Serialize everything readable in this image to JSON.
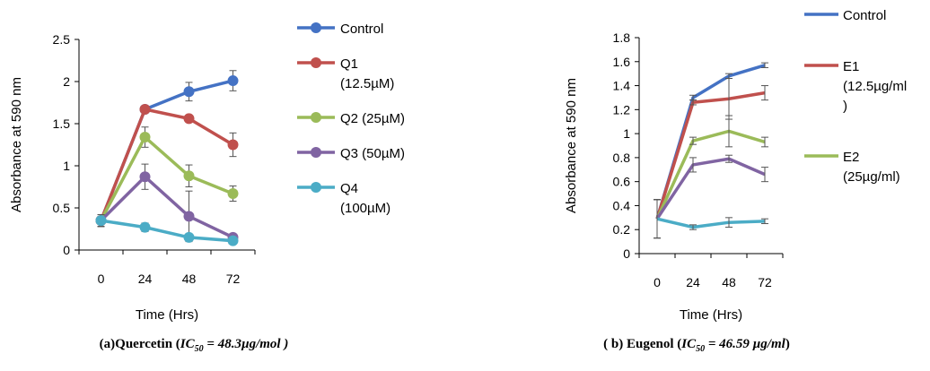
{
  "chart_data": [
    {
      "type": "line",
      "categories": [
        "0",
        "24",
        "48",
        "72"
      ],
      "xlabel": "Time (Hrs)",
      "ylabel": "Absorbance at 590 nm",
      "ylim": [
        0,
        2.5
      ],
      "yticks": [
        "0",
        "0.5",
        "1",
        "1.5",
        "2",
        "2.5"
      ],
      "markers": true,
      "legend_position": "right",
      "caption": {
        "prefix": "(a)Quercetin (",
        "ic": "IC",
        "sub": "50",
        "value": " = 48.3µg/mol )",
        "suffix": ""
      },
      "series": [
        {
          "name": "Control",
          "legend_lines": [
            "Control"
          ],
          "color": "#4472C4",
          "values": [
            0.35,
            1.67,
            1.88,
            2.01
          ],
          "errors": [
            0.07,
            0.03,
            0.11,
            0.12
          ]
        },
        {
          "name": "Q1 (12.5µM)",
          "legend_lines": [
            "Q1",
            "(12.5µM)"
          ],
          "color": "#C0504D",
          "values": [
            0.35,
            1.67,
            1.56,
            1.25
          ],
          "errors": [
            0.07,
            0.03,
            0.03,
            0.14
          ]
        },
        {
          "name": "Q2 (25µM)",
          "legend_lines": [
            "Q2 (25µM)"
          ],
          "color": "#9BBB59",
          "values": [
            0.35,
            1.34,
            0.88,
            0.67
          ],
          "errors": [
            0.07,
            0.12,
            0.13,
            0.09
          ]
        },
        {
          "name": "Q3 (50µM)",
          "legend_lines": [
            "Q3 (50µM)"
          ],
          "color": "#8064A2",
          "values": [
            0.35,
            0.87,
            0.4,
            0.15
          ],
          "errors": [
            0.07,
            0.15,
            0.3,
            0.03
          ]
        },
        {
          "name": "Q4 (100µM)",
          "legend_lines": [
            "Q4",
            "(100µM)"
          ],
          "color": "#4BACC6",
          "values": [
            0.35,
            0.27,
            0.15,
            0.11
          ],
          "errors": [
            0.07,
            0.05,
            0.02,
            0.02
          ]
        }
      ]
    },
    {
      "type": "line",
      "categories": [
        "0",
        "24",
        "48",
        "72"
      ],
      "xlabel": "Time (Hrs)",
      "ylabel": "Absorbance at 590 nm",
      "ylim": [
        0,
        1.8
      ],
      "yticks": [
        "0",
        "0.2",
        "0.4",
        "0.6",
        "0.8",
        "1",
        "1.2",
        "1.4",
        "1.6",
        "1.8"
      ],
      "markers": false,
      "legend_position": "right",
      "caption": {
        "prefix": "( b) Eugenol (",
        "ic": "IC",
        "sub": "50",
        "value": " = 46.59 µg/ml",
        "suffix": ")"
      },
      "series": [
        {
          "name": "Control",
          "legend_lines": [
            "Control"
          ],
          "color": "#4472C4",
          "values": [
            0.29,
            1.3,
            1.48,
            1.57
          ],
          "errors": [
            0.16,
            0.02,
            0.02,
            0.02
          ]
        },
        {
          "name": "E1 (12.5µg/ml)",
          "legend_lines": [
            "E1",
            "(12.5µg/ml",
            ")"
          ],
          "color": "#C0504D",
          "values": [
            0.29,
            1.26,
            1.29,
            1.34
          ],
          "errors": [
            0.16,
            0.02,
            0.17,
            0.06
          ]
        },
        {
          "name": "E2 (25µg/ml)",
          "legend_lines": [
            "E2",
            "(25µg/ml)"
          ],
          "color": "#9BBB59",
          "values": [
            0.29,
            0.94,
            1.02,
            0.93
          ],
          "errors": [
            0.16,
            0.03,
            0.13,
            0.04
          ]
        },
        {
          "name": "",
          "legend_lines": [],
          "color": "#8064A2",
          "values": [
            0.29,
            0.74,
            0.79,
            0.66
          ],
          "errors": [
            0.16,
            0.06,
            0.03,
            0.06
          ]
        },
        {
          "name": "",
          "legend_lines": [],
          "color": "#4BACC6",
          "values": [
            0.29,
            0.22,
            0.26,
            0.27
          ],
          "errors": [
            0.16,
            0.02,
            0.04,
            0.02
          ]
        }
      ]
    }
  ]
}
